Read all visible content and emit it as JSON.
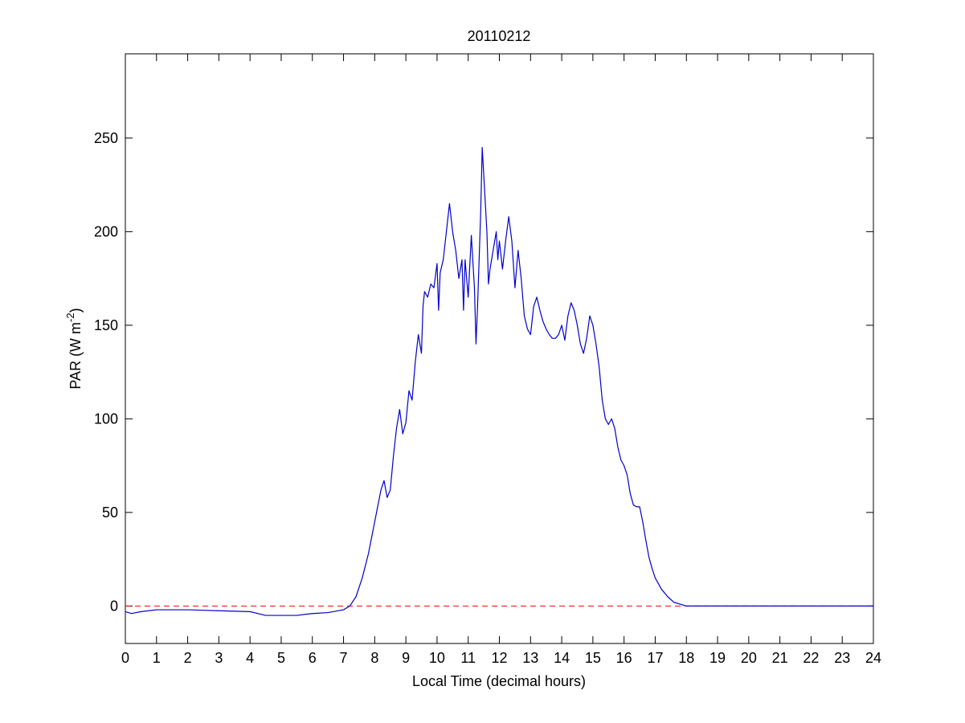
{
  "chart_data": {
    "type": "line",
    "title": "20110212",
    "xlabel": "Local Time (decimal hours)",
    "ylabel": {
      "text": "PAR (W m",
      "superscript": "-2",
      "suffix": ")"
    },
    "xlim": [
      0,
      24
    ],
    "xticks": [
      0,
      1,
      2,
      3,
      4,
      5,
      6,
      7,
      8,
      9,
      10,
      11,
      12,
      13,
      14,
      15,
      16,
      17,
      18,
      19,
      20,
      21,
      22,
      23,
      24
    ],
    "ylim": [
      -20,
      295
    ],
    "yticks": [
      0,
      50,
      100,
      150,
      200,
      250
    ],
    "grid": false,
    "hline": {
      "value": 0,
      "color": "#ff0000",
      "style": "dashed"
    },
    "x": [
      0,
      0.2,
      0.5,
      1,
      2,
      3,
      4,
      4.5,
      5,
      5.5,
      6,
      6.5,
      7,
      7.2,
      7.4,
      7.6,
      7.8,
      8,
      8.2,
      8.3,
      8.4,
      8.5,
      8.6,
      8.7,
      8.8,
      8.9,
      9,
      9.1,
      9.2,
      9.3,
      9.4,
      9.5,
      9.55,
      9.6,
      9.7,
      9.8,
      9.9,
      10,
      10.05,
      10.1,
      10.2,
      10.3,
      10.4,
      10.5,
      10.6,
      10.7,
      10.8,
      10.85,
      10.9,
      11,
      11.1,
      11.2,
      11.25,
      11.3,
      11.4,
      11.45,
      11.5,
      11.6,
      11.65,
      11.7,
      11.8,
      11.9,
      11.95,
      12,
      12.1,
      12.2,
      12.3,
      12.4,
      12.5,
      12.6,
      12.7,
      12.8,
      12.9,
      13,
      13.1,
      13.2,
      13.3,
      13.4,
      13.5,
      13.6,
      13.7,
      13.8,
      13.9,
      14,
      14.1,
      14.2,
      14.3,
      14.4,
      14.5,
      14.6,
      14.7,
      14.8,
      14.9,
      15,
      15.1,
      15.2,
      15.3,
      15.4,
      15.5,
      15.6,
      15.7,
      15.8,
      15.9,
      16,
      16.1,
      16.2,
      16.3,
      16.4,
      16.5,
      16.6,
      16.7,
      16.8,
      16.9,
      17,
      17.2,
      17.4,
      17.6,
      17.8,
      18,
      20,
      22,
      24
    ],
    "series": [
      {
        "color": "#0000cc",
        "values": [
          -3,
          -4,
          -3,
          -2,
          -2,
          -2.5,
          -3,
          -5,
          -5,
          -5,
          -4,
          -3.5,
          -2,
          0,
          5,
          15,
          28,
          45,
          62,
          67,
          58,
          62,
          80,
          95,
          105,
          92,
          98,
          115,
          110,
          130,
          145,
          135,
          160,
          168,
          165,
          172,
          170,
          183,
          158,
          178,
          185,
          200,
          215,
          200,
          190,
          175,
          185,
          158,
          185,
          165,
          198,
          170,
          140,
          160,
          210,
          245,
          230,
          200,
          172,
          180,
          190,
          200,
          185,
          195,
          180,
          195,
          208,
          195,
          170,
          190,
          175,
          155,
          148,
          145,
          160,
          165,
          158,
          152,
          148,
          145,
          143,
          143,
          145,
          150,
          142,
          155,
          162,
          158,
          150,
          140,
          135,
          143,
          155,
          150,
          140,
          128,
          110,
          100,
          97,
          100,
          95,
          85,
          78,
          75,
          70,
          60,
          54,
          53,
          53,
          45,
          35,
          26,
          20,
          15,
          9,
          5,
          2,
          1,
          0,
          0,
          0,
          0
        ]
      }
    ]
  }
}
